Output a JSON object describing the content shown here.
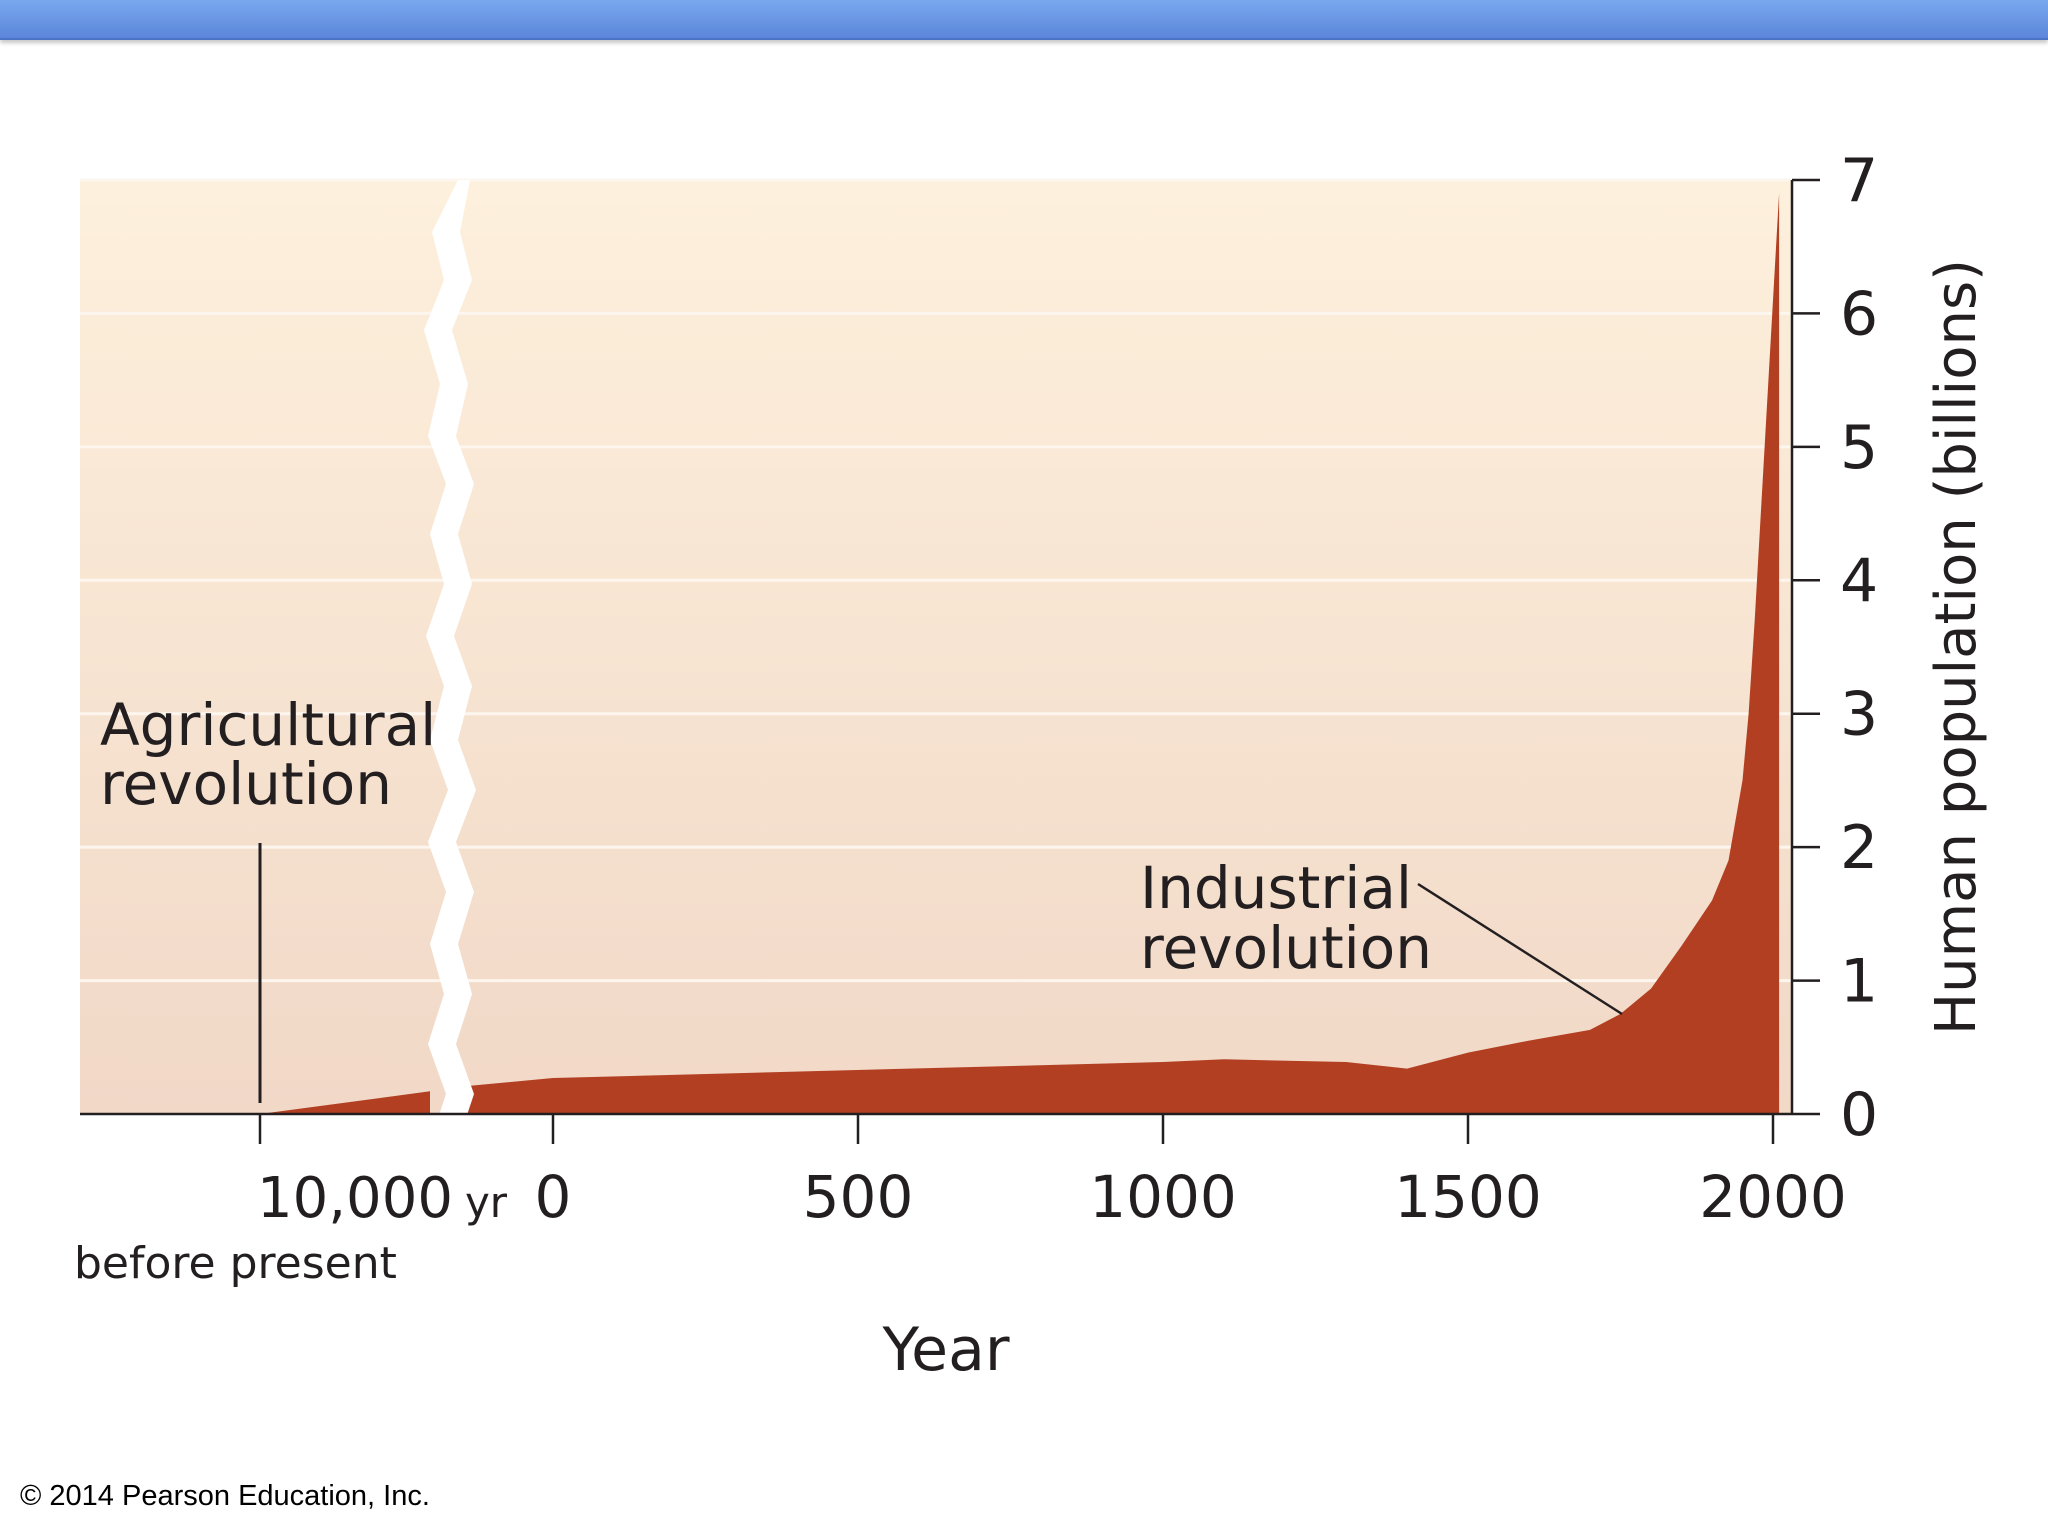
{
  "slide": {
    "copyright": "© 2014 Pearson Education, Inc.",
    "accent_color": "#6e9ae6"
  },
  "chart_data": {
    "type": "area",
    "title": "",
    "xlabel": "Year",
    "ylabel": "Human population (billions)",
    "ylim": [
      0,
      7
    ],
    "y_ticks": [
      "0",
      "1",
      "2",
      "3",
      "4",
      "5",
      "6",
      "7"
    ],
    "x_tick_labels": {
      "bp_main": "10,000",
      "bp_unit": "yr",
      "bp_sub": "before present",
      "years": [
        "0",
        "500",
        "1000",
        "1500",
        "2000"
      ]
    },
    "axis_break": "between 10,000 yr before present and year 0",
    "segments": [
      {
        "name": "prehistory",
        "x_units": "years before present",
        "x": [
          10000,
          8000
        ],
        "y": [
          0.0,
          0.17
        ]
      },
      {
        "name": "common era",
        "x_units": "year",
        "x": [
          -140,
          0,
          1000,
          1100,
          1300,
          1400,
          1500,
          1600,
          1700,
          1750,
          1800,
          1850,
          1900,
          1927,
          1950,
          1960,
          1970,
          1980,
          1990,
          2000,
          2010
        ],
        "y": [
          0.21,
          0.27,
          0.39,
          0.41,
          0.39,
          0.34,
          0.46,
          0.55,
          0.63,
          0.75,
          0.94,
          1.26,
          1.6,
          1.9,
          2.5,
          3.0,
          3.7,
          4.5,
          5.3,
          6.1,
          6.9
        ]
      }
    ],
    "annotations": [
      {
        "text": "Agricultural revolution",
        "lines": [
          "Agricultural",
          "revolution"
        ],
        "target": "10,000 yr before present"
      },
      {
        "text": "Industrial revolution",
        "lines": [
          "Industrial",
          "revolution"
        ],
        "target": "year 1750"
      }
    ],
    "colors": {
      "fill": "#b33f22",
      "background_top": "#fdf0dc",
      "background_bottom": "#f1d8c7",
      "gridline": "#fdf6ee",
      "axis": "#231f20"
    },
    "grid": true
  }
}
